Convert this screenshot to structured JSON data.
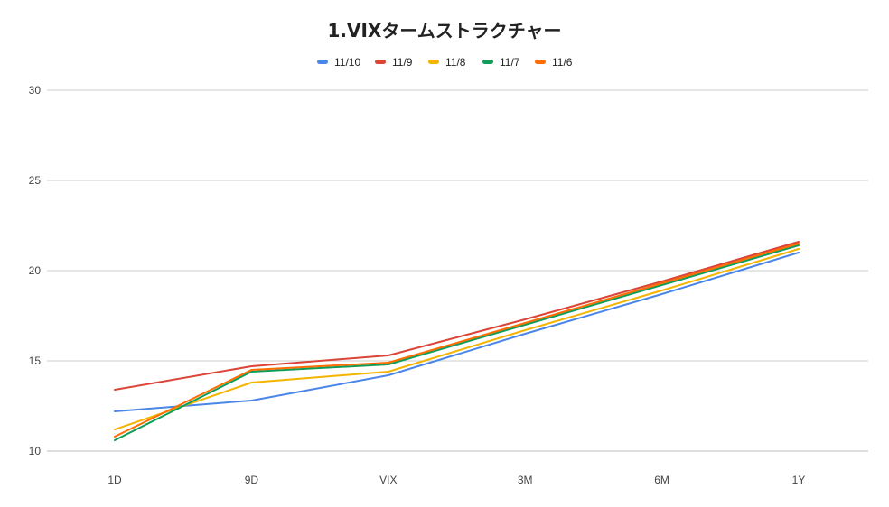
{
  "chart_data": {
    "type": "line",
    "title": "1.VIXタームストラクチャー",
    "xlabel": "",
    "ylabel": "",
    "categories": [
      "1D",
      "9D",
      "VIX",
      "3M",
      "6M",
      "1Y"
    ],
    "ylim": [
      10,
      30
    ],
    "yticks": [
      "10",
      "15",
      "20",
      "25",
      "30"
    ],
    "grid": true,
    "legend_position": "top",
    "series": [
      {
        "name": "11/10",
        "color": "#4a86e8",
        "values": [
          12.2,
          12.8,
          14.2,
          16.5,
          18.7,
          21.0
        ]
      },
      {
        "name": "11/9",
        "color": "#db4437",
        "values": [
          13.4,
          14.7,
          15.3,
          17.3,
          19.4,
          21.6
        ]
      },
      {
        "name": "11/8",
        "color": "#f4b400",
        "values": [
          11.2,
          13.8,
          14.4,
          16.7,
          18.9,
          21.2
        ]
      },
      {
        "name": "11/7",
        "color": "#0f9d58",
        "values": [
          10.6,
          14.4,
          14.8,
          17.0,
          19.2,
          21.4
        ]
      },
      {
        "name": "11/6",
        "color": "#ff6d01",
        "values": [
          10.8,
          14.5,
          14.9,
          17.1,
          19.3,
          21.5
        ]
      }
    ]
  }
}
